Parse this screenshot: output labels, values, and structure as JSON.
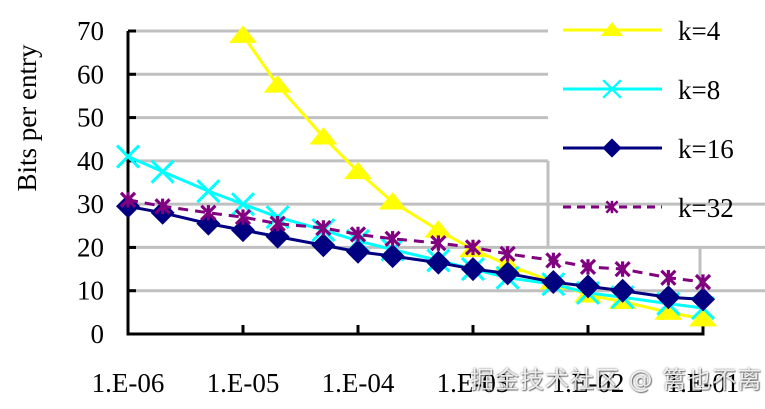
{
  "chart_data": {
    "type": "line",
    "title": "",
    "xlabel": "",
    "ylabel": "Bits  per entry",
    "x_scale": "log",
    "xlim": [
      1e-06,
      0.1
    ],
    "ylim": [
      0,
      70
    ],
    "yticks": [
      0,
      10,
      20,
      30,
      40,
      50,
      60,
      70
    ],
    "xtick_labels": [
      "1.E-06",
      "1.E-05",
      "1.E-04",
      "1.E-03",
      "1.E-02",
      "1.E-01"
    ],
    "grid": "horizontal",
    "legend_position": "top-right",
    "x": [
      1e-06,
      2e-06,
      5e-06,
      1e-05,
      2e-05,
      5e-05,
      0.0001,
      0.0002,
      0.0005,
      0.001,
      0.002,
      0.005,
      0.01,
      0.02,
      0.05,
      0.1
    ],
    "series": [
      {
        "name": "k=4",
        "color": "#FFFF00",
        "marker": "triangle",
        "dash": false,
        "values": [
          null,
          null,
          null,
          69,
          57.5,
          45.5,
          37.5,
          30.5,
          24,
          19.5,
          16,
          12,
          9,
          7.5,
          5,
          3.5
        ]
      },
      {
        "name": "k=8",
        "color": "#00FFFF",
        "marker": "x",
        "dash": false,
        "values": [
          41,
          37.5,
          33,
          30,
          27,
          24,
          21.5,
          19.5,
          17,
          15,
          13,
          11.5,
          9.5,
          8.5,
          7,
          6
        ]
      },
      {
        "name": "k=16",
        "color": "#000080",
        "marker": "diamond",
        "dash": false,
        "values": [
          29.5,
          28,
          25.5,
          24,
          22.5,
          20.5,
          19,
          18,
          16.5,
          15,
          14,
          12,
          11,
          10,
          8.5,
          8
        ]
      },
      {
        "name": "k=32",
        "color": "#800080",
        "marker": "asterisk",
        "dash": true,
        "values": [
          31,
          29.5,
          28,
          27,
          25.5,
          24.5,
          23,
          22,
          21,
          20,
          18.5,
          17,
          15.5,
          15,
          13,
          12
        ]
      }
    ]
  },
  "watermark": "掘金技术社区 @ 篱也不离"
}
